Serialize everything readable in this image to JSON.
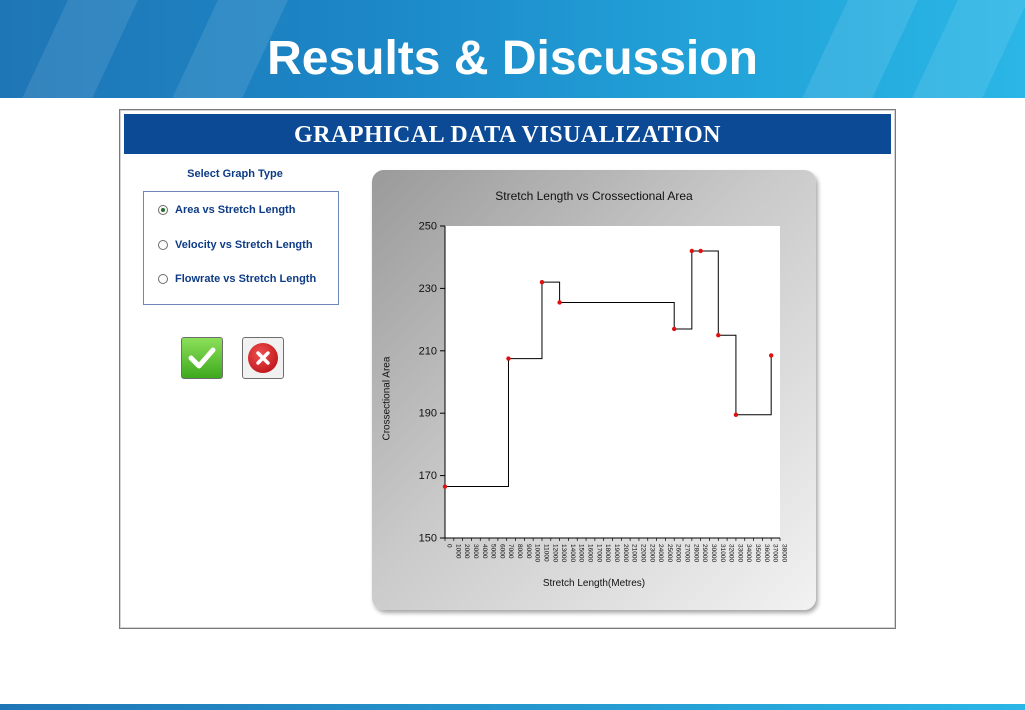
{
  "slide": {
    "title": "Results & Discussion"
  },
  "window": {
    "title": "GRAPHICAL DATA VISUALIZATION",
    "select_label": "Select Graph Type",
    "graph_types": [
      {
        "label": "Area vs Stretch Length",
        "selected": true
      },
      {
        "label": "Velocity vs Stretch Length",
        "selected": false
      },
      {
        "label": "Flowrate vs Stretch Length",
        "selected": false
      }
    ],
    "buttons": {
      "ok_icon": "check-icon",
      "cancel_icon": "close-icon"
    }
  },
  "chart_data": {
    "type": "line",
    "step": true,
    "title": "Stretch Length vs Crossectional Area",
    "xlabel": "Stretch Length(Metres)",
    "ylabel": "Crossectional Area",
    "ylim": [
      150,
      250
    ],
    "yticks": [
      150,
      170,
      190,
      210,
      230,
      250
    ],
    "xlim": [
      0,
      38000
    ],
    "xticks": [
      0,
      1000,
      2000,
      3000,
      4000,
      5000,
      6000,
      7000,
      8000,
      9000,
      10000,
      11000,
      12000,
      13000,
      14000,
      15000,
      16000,
      17000,
      18000,
      19000,
      20000,
      21000,
      22000,
      23000,
      24000,
      25000,
      26000,
      27000,
      28000,
      29000,
      30000,
      31000,
      32000,
      33000,
      34000,
      35000,
      36000,
      37000,
      38000
    ],
    "series": [
      {
        "color": "#e01010",
        "points": [
          {
            "x": 0,
            "y": 166.5
          },
          {
            "x": 7200,
            "y": 207.5
          },
          {
            "x": 11000,
            "y": 232
          },
          {
            "x": 13000,
            "y": 225.5
          },
          {
            "x": 26000,
            "y": 217
          },
          {
            "x": 28000,
            "y": 242
          },
          {
            "x": 29000,
            "y": 242
          },
          {
            "x": 31000,
            "y": 215
          },
          {
            "x": 33000,
            "y": 189.5
          },
          {
            "x": 37000,
            "y": 208.5
          }
        ]
      }
    ],
    "grid": false,
    "legend": false
  }
}
